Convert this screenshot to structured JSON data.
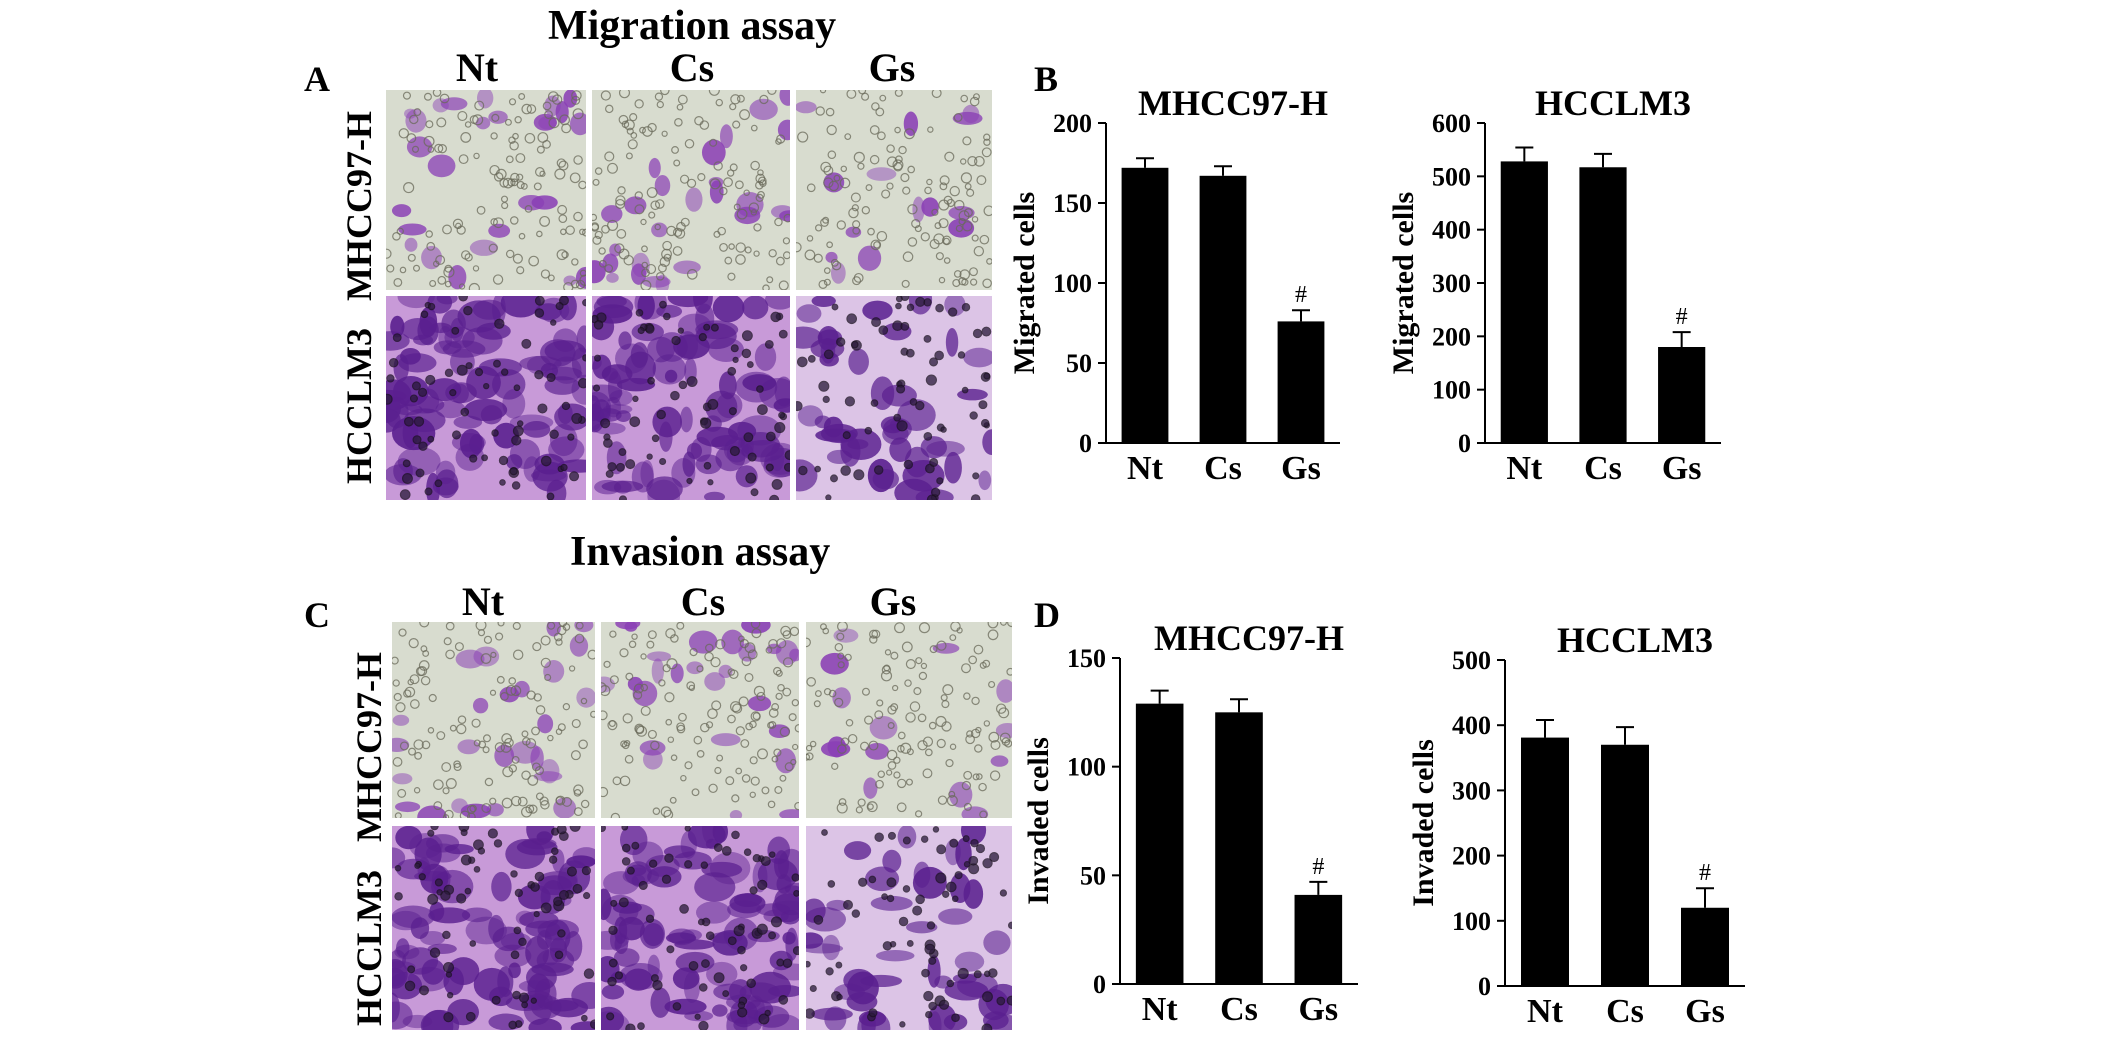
{
  "figure": {
    "migration_title": "Migration assay",
    "invasion_title": "Invasion assay",
    "panels": {
      "a": "A",
      "b": "B",
      "c": "C",
      "d": "D"
    },
    "columns": [
      "Nt",
      "Cs",
      "Gs"
    ],
    "rows": [
      "MHCC97-H",
      "HCCLM3"
    ]
  },
  "colors": {
    "bar": "#000000",
    "stain_light_bg": "#d8dccf",
    "stain_purple": "#8a3fb5",
    "stain_dark_bg": "#c89ad8",
    "stain_dark_purple": "#5a1f8f"
  },
  "chart_data": [
    {
      "type": "bar",
      "title": "MHCC97-H",
      "ylabel": "Migrated cells",
      "categories": [
        "Nt",
        "Cs",
        "Gs"
      ],
      "values": [
        172,
        167,
        76
      ],
      "errors": [
        6,
        6,
        7
      ],
      "annotations": [
        "",
        "",
        "#"
      ],
      "ylim": [
        0,
        200
      ],
      "yticks": [
        0,
        50,
        100,
        150,
        200
      ]
    },
    {
      "type": "bar",
      "title": "HCCLM3",
      "ylabel": "Migrated cells",
      "categories": [
        "Nt",
        "Cs",
        "Gs"
      ],
      "values": [
        528,
        517,
        180
      ],
      "errors": [
        26,
        25,
        28
      ],
      "annotations": [
        "",
        "",
        "#"
      ],
      "ylim": [
        0,
        600
      ],
      "yticks": [
        0,
        100,
        200,
        300,
        400,
        500,
        600
      ]
    },
    {
      "type": "bar",
      "title": "MHCC97-H",
      "ylabel": "Invaded cells",
      "categories": [
        "Nt",
        "Cs",
        "Gs"
      ],
      "values": [
        129,
        125,
        41
      ],
      "errors": [
        6,
        6,
        6
      ],
      "annotations": [
        "",
        "",
        "#"
      ],
      "ylim": [
        0,
        150
      ],
      "yticks": [
        0,
        50,
        100,
        150
      ]
    },
    {
      "type": "bar",
      "title": "HCCLM3",
      "ylabel": "Invaded cells",
      "categories": [
        "Nt",
        "Cs",
        "Gs"
      ],
      "values": [
        381,
        370,
        120
      ],
      "errors": [
        27,
        27,
        30
      ],
      "annotations": [
        "",
        "",
        "#"
      ],
      "ylim": [
        0,
        500
      ],
      "yticks": [
        0,
        100,
        200,
        300,
        400,
        500
      ]
    }
  ]
}
